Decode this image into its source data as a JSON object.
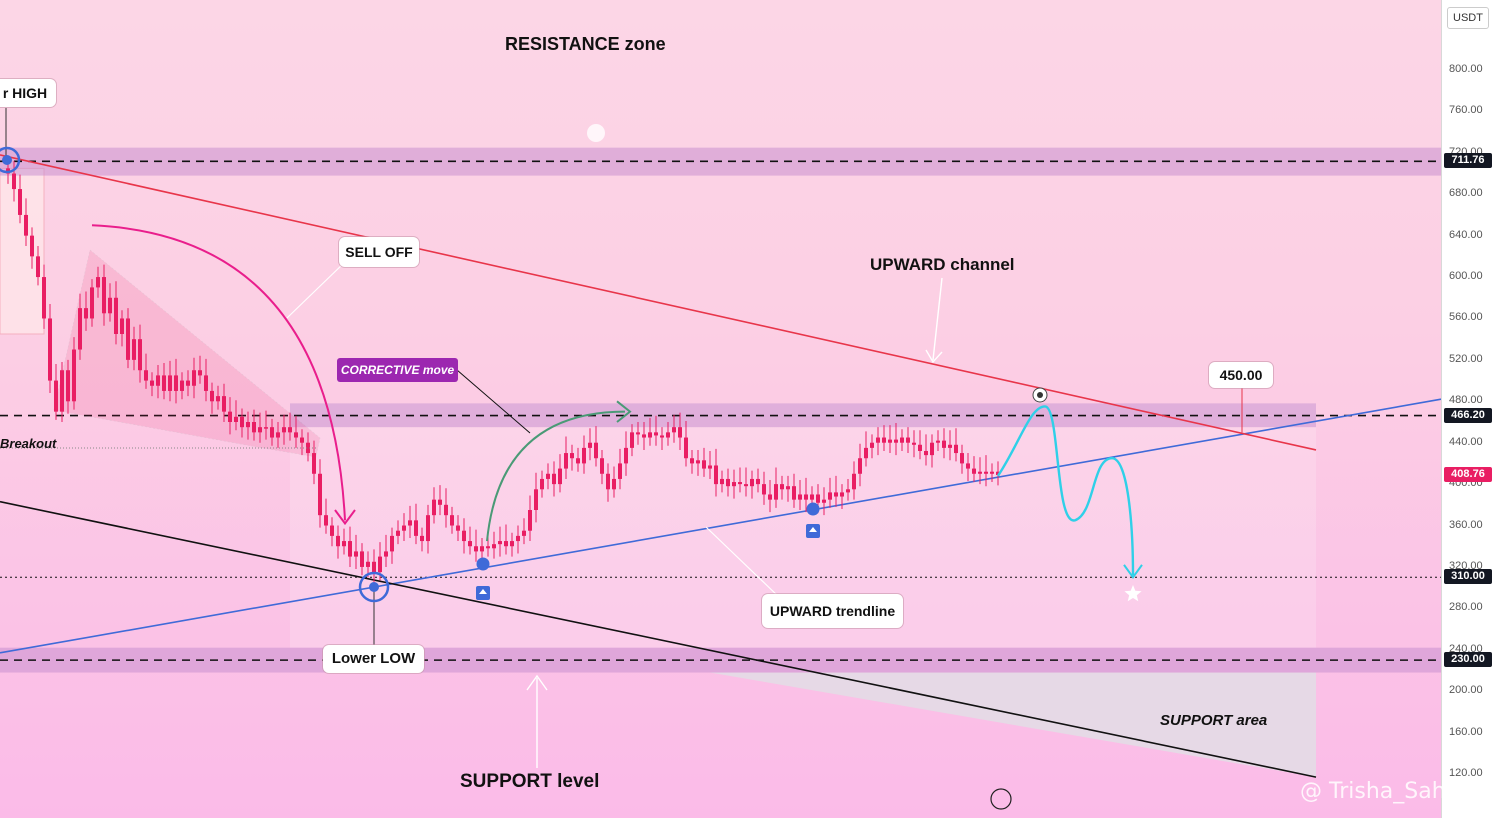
{
  "chart_data": {
    "type": "candlestick",
    "currency": "USDT",
    "ylim": [
      100,
      840
    ],
    "y_ticks": [
      120,
      160,
      200,
      240,
      280,
      320,
      360,
      400,
      440,
      480,
      520,
      560,
      600,
      640,
      680,
      720,
      760,
      800
    ],
    "y_tick_labels": [
      "120.00",
      "160.00",
      "200.00",
      "240.00",
      "280.00",
      "320.00",
      "360.00",
      "400.00",
      "440.00",
      "480.00",
      "520.00",
      "560.00",
      "600.00",
      "640.00",
      "680.00",
      "720.00",
      "760.00",
      "800.00"
    ],
    "price_levels": [
      {
        "value": 711.76,
        "label": "711.76",
        "style": "dashed"
      },
      {
        "value": 466.2,
        "label": "466.20",
        "style": "dashed"
      },
      {
        "value": 408.76,
        "label": "408.76",
        "style": "current"
      },
      {
        "value": 310.0,
        "label": "310.00",
        "style": "dotted"
      },
      {
        "value": 230.0,
        "label": "230.00",
        "style": "dashed"
      }
    ],
    "zones": [
      {
        "name": "resistance",
        "from": 698,
        "to": 725
      },
      {
        "name": "mid",
        "from": 455,
        "to": 478
      },
      {
        "name": "support",
        "from": 218,
        "to": 242
      }
    ],
    "trend_path": [
      [
        0,
        705
      ],
      [
        8,
        700
      ],
      [
        14,
        685
      ],
      [
        20,
        660
      ],
      [
        26,
        640
      ],
      [
        32,
        620
      ],
      [
        38,
        600
      ],
      [
        44,
        560
      ],
      [
        50,
        500
      ],
      [
        56,
        470
      ],
      [
        62,
        510
      ],
      [
        68,
        480
      ],
      [
        74,
        530
      ],
      [
        80,
        570
      ],
      [
        86,
        560
      ],
      [
        92,
        590
      ],
      [
        98,
        600
      ],
      [
        104,
        565
      ],
      [
        110,
        580
      ],
      [
        116,
        545
      ],
      [
        122,
        560
      ],
      [
        128,
        520
      ],
      [
        134,
        540
      ],
      [
        140,
        510
      ],
      [
        146,
        500
      ],
      [
        152,
        495
      ],
      [
        158,
        505
      ],
      [
        164,
        490
      ],
      [
        170,
        505
      ],
      [
        176,
        490
      ],
      [
        182,
        500
      ],
      [
        188,
        495
      ],
      [
        194,
        510
      ],
      [
        200,
        505
      ],
      [
        206,
        490
      ],
      [
        212,
        480
      ],
      [
        218,
        485
      ],
      [
        224,
        470
      ],
      [
        230,
        460
      ],
      [
        236,
        465
      ],
      [
        242,
        455
      ],
      [
        248,
        460
      ],
      [
        254,
        450
      ],
      [
        260,
        455
      ],
      [
        266,
        455
      ],
      [
        272,
        445
      ],
      [
        278,
        450
      ],
      [
        284,
        455
      ],
      [
        290,
        450
      ],
      [
        296,
        445
      ],
      [
        302,
        440
      ],
      [
        308,
        430
      ],
      [
        314,
        410
      ],
      [
        320,
        370
      ],
      [
        326,
        360
      ],
      [
        332,
        350
      ],
      [
        338,
        340
      ],
      [
        344,
        345
      ],
      [
        350,
        330
      ],
      [
        356,
        335
      ],
      [
        362,
        320
      ],
      [
        368,
        325
      ],
      [
        374,
        315
      ],
      [
        380,
        330
      ],
      [
        386,
        335
      ],
      [
        392,
        350
      ],
      [
        398,
        355
      ],
      [
        404,
        360
      ],
      [
        410,
        365
      ],
      [
        416,
        350
      ],
      [
        422,
        345
      ],
      [
        428,
        370
      ],
      [
        434,
        385
      ],
      [
        440,
        380
      ],
      [
        446,
        370
      ],
      [
        452,
        360
      ],
      [
        458,
        355
      ],
      [
        464,
        345
      ],
      [
        470,
        340
      ],
      [
        476,
        335
      ],
      [
        482,
        340
      ],
      [
        488,
        338
      ],
      [
        494,
        342
      ],
      [
        500,
        345
      ],
      [
        506,
        340
      ],
      [
        512,
        345
      ],
      [
        518,
        350
      ],
      [
        524,
        355
      ],
      [
        530,
        375
      ],
      [
        536,
        395
      ],
      [
        542,
        405
      ],
      [
        548,
        410
      ],
      [
        554,
        400
      ],
      [
        560,
        415
      ],
      [
        566,
        430
      ],
      [
        572,
        425
      ],
      [
        578,
        420
      ],
      [
        584,
        435
      ],
      [
        590,
        440
      ],
      [
        596,
        425
      ],
      [
        602,
        410
      ],
      [
        608,
        395
      ],
      [
        614,
        405
      ],
      [
        620,
        420
      ],
      [
        626,
        435
      ],
      [
        632,
        450
      ],
      [
        638,
        448
      ],
      [
        644,
        445
      ],
      [
        650,
        450
      ],
      [
        656,
        447
      ],
      [
        662,
        445
      ],
      [
        668,
        450
      ],
      [
        674,
        455
      ],
      [
        680,
        445
      ],
      [
        686,
        425
      ],
      [
        692,
        420
      ],
      [
        698,
        423
      ],
      [
        704,
        415
      ],
      [
        710,
        418
      ],
      [
        716,
        400
      ],
      [
        722,
        405
      ],
      [
        728,
        398
      ],
      [
        734,
        402
      ],
      [
        740,
        400
      ],
      [
        746,
        398
      ],
      [
        752,
        405
      ],
      [
        758,
        400
      ],
      [
        764,
        390
      ],
      [
        770,
        385
      ],
      [
        776,
        400
      ],
      [
        782,
        395
      ],
      [
        788,
        398
      ],
      [
        794,
        385
      ],
      [
        800,
        390
      ],
      [
        806,
        385
      ],
      [
        812,
        390
      ],
      [
        818,
        382
      ],
      [
        824,
        385
      ],
      [
        830,
        392
      ],
      [
        836,
        388
      ],
      [
        842,
        392
      ],
      [
        848,
        395
      ],
      [
        854,
        410
      ],
      [
        860,
        425
      ],
      [
        866,
        435
      ],
      [
        872,
        440
      ],
      [
        878,
        445
      ],
      [
        884,
        440
      ],
      [
        890,
        443
      ],
      [
        896,
        440
      ],
      [
        902,
        445
      ],
      [
        908,
        440
      ],
      [
        914,
        438
      ],
      [
        920,
        432
      ],
      [
        926,
        428
      ],
      [
        932,
        440
      ],
      [
        938,
        442
      ],
      [
        944,
        435
      ],
      [
        950,
        438
      ],
      [
        956,
        430
      ],
      [
        962,
        420
      ],
      [
        968,
        415
      ],
      [
        974,
        410
      ],
      [
        980,
        412
      ],
      [
        986,
        410
      ],
      [
        992,
        412
      ],
      [
        998,
        408.76
      ]
    ],
    "projection_path": [
      [
        998,
        408
      ],
      [
        1030,
        460
      ],
      [
        1045,
        470
      ],
      [
        1060,
        430
      ],
      [
        1075,
        375
      ],
      [
        1090,
        390
      ],
      [
        1110,
        420
      ],
      [
        1125,
        400
      ],
      [
        1133,
        310
      ]
    ],
    "lines": [
      {
        "name": "upward-trendline",
        "color": "#3f6ad8",
        "points": [
          [
            0,
            237
          ],
          [
            1441,
            482
          ]
        ]
      },
      {
        "name": "channel-top",
        "color": "#e8354a",
        "points": [
          [
            0,
            718
          ],
          [
            1316,
            433
          ]
        ]
      },
      {
        "name": "support-diagonal",
        "color": "#111111",
        "points": [
          [
            0,
            383
          ],
          [
            1316,
            117
          ]
        ]
      }
    ]
  },
  "annotations": {
    "resistance_zone": "RESISTANCE zone",
    "higher_high": "r HIGH",
    "sell_off": "SELL OFF",
    "corrective_move": "CORRECTIVE move",
    "breakout": "Breakout",
    "upward_channel": "UPWARD channel",
    "target_price": "450.00",
    "upward_trendline": "UPWARD trendline",
    "lower_low": "Lower LOW",
    "support_level": "SUPPORT level",
    "support_area": "SUPPORT area"
  },
  "watermark": "@ Trisha_Saha",
  "colors": {
    "bull": "#e91e63",
    "bear": "#e91e63",
    "trendline": "#3f6ad8",
    "channel": "#e8354a",
    "projection": "#2fd0e8",
    "zone": "#c98fd0"
  }
}
